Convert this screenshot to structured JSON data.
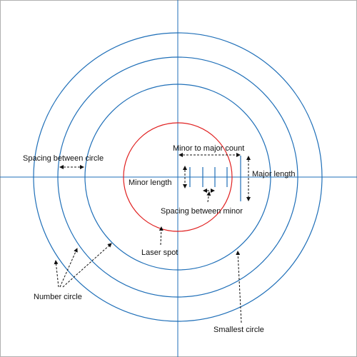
{
  "colors": {
    "circle": "#1f6fb8",
    "laser": "#e02020",
    "axis": "#1f6fb8",
    "tick": "#1f6fb8",
    "annotation": "#111111",
    "frame": "#b0b0b0"
  },
  "labels": {
    "spacing_between_circle": "Spacing between circle",
    "minor_to_major_count": "Minor to major count",
    "minor_length": "Minor length",
    "major_length": "Major length",
    "spacing_between_minor": "Spacing between minor",
    "laser_spot": "Laser spot",
    "number_circle": "Number circle",
    "smallest_circle": "Smallest circle"
  }
}
